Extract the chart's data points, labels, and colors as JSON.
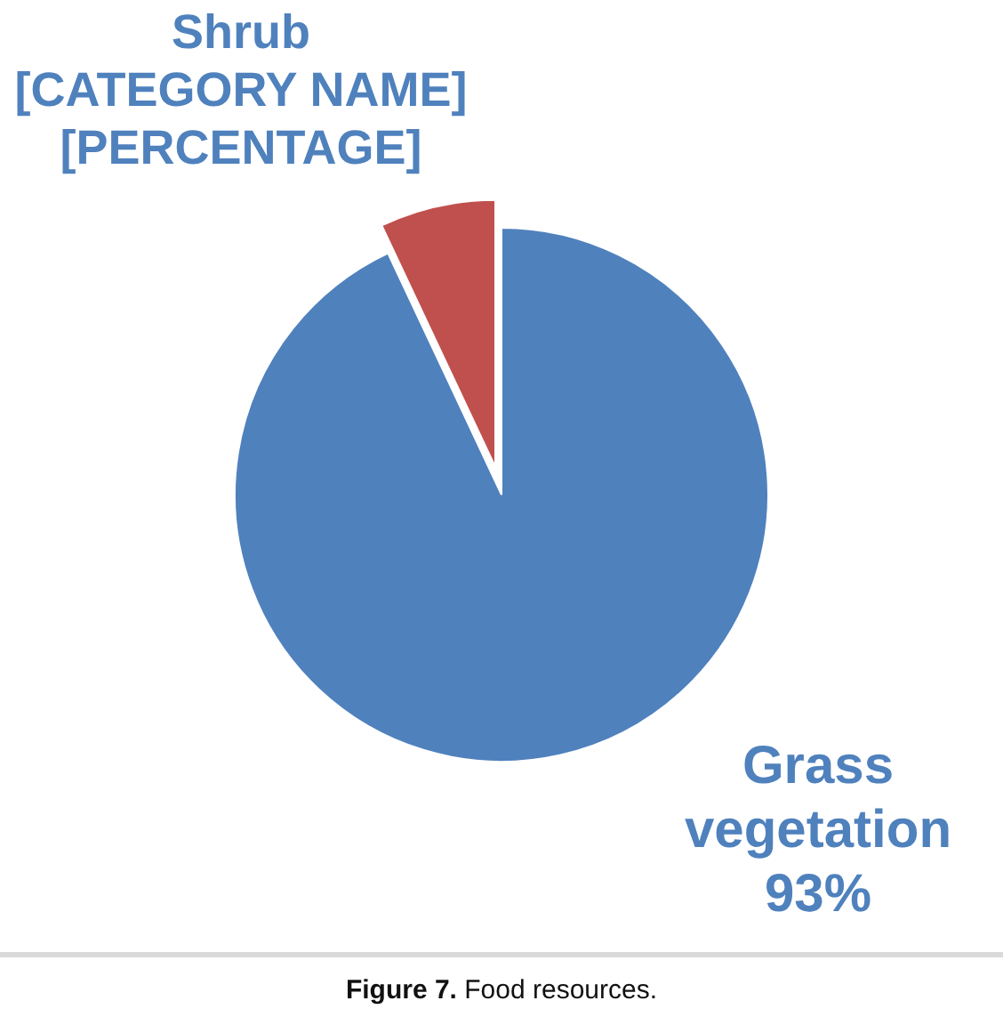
{
  "chart_data": {
    "type": "pie",
    "categories": [
      "Grass vegetation",
      "Shrub"
    ],
    "values": [
      93,
      7
    ],
    "colors": [
      "#4f81bd",
      "#c0504d"
    ],
    "value_labels": [
      "93%",
      "[CATEGORY NAME] [PERCENTAGE]"
    ],
    "annotations": [
      "Figure 7. Food resources."
    ]
  }
}
